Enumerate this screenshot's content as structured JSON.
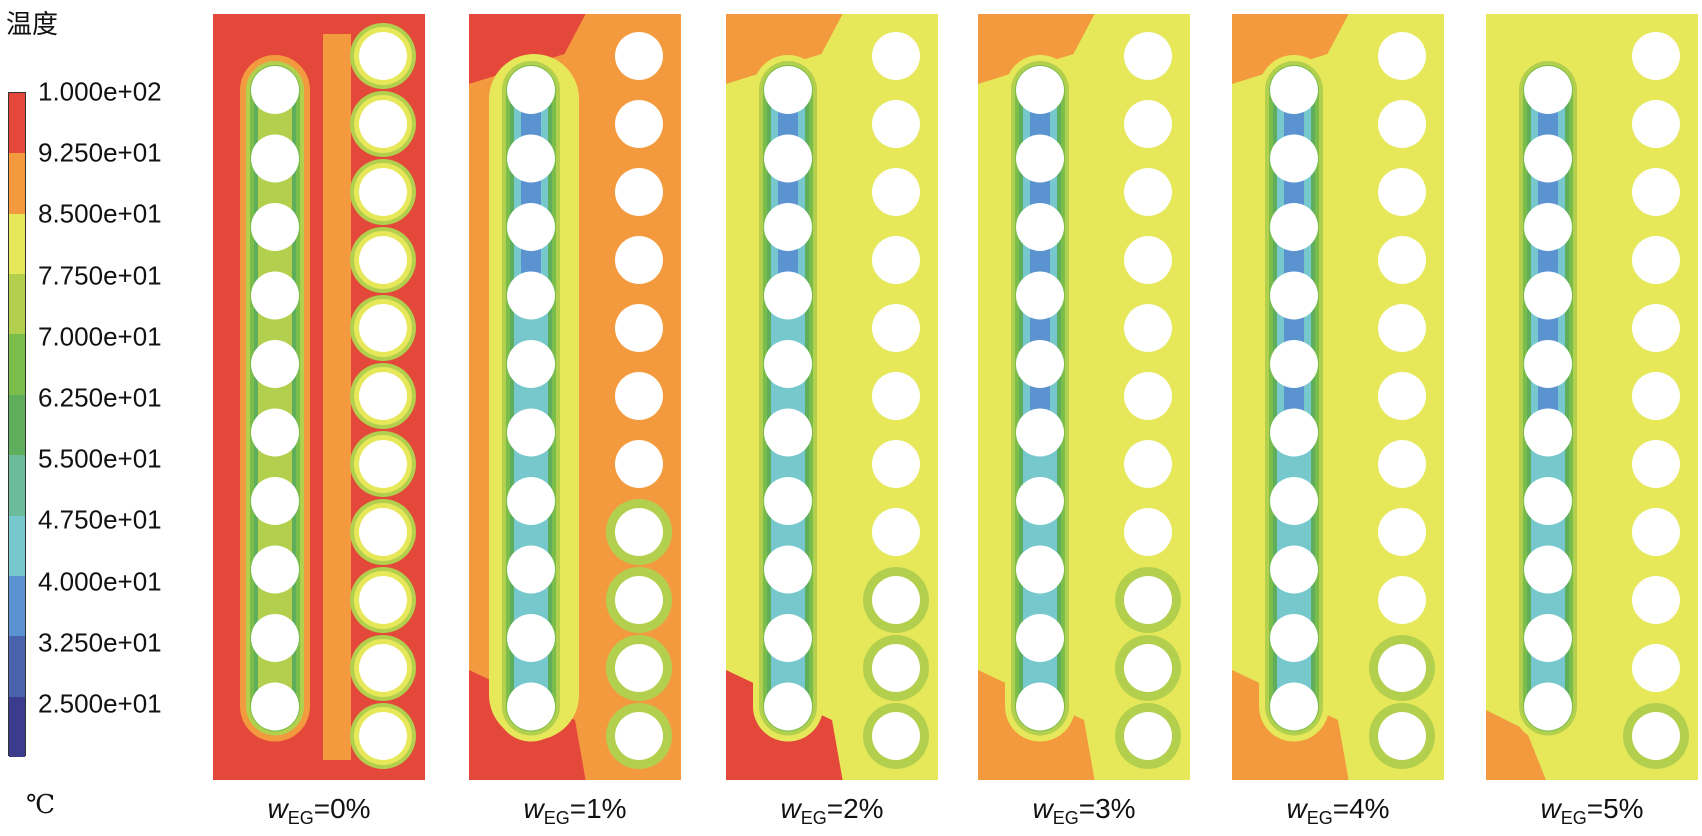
{
  "legend": {
    "title": "温度",
    "unit": "℃",
    "ticks": [
      "1.000e+02",
      "9.250e+01",
      "8.500e+01",
      "7.750e+01",
      "7.000e+01",
      "6.250e+01",
      "5.500e+01",
      "4.750e+01",
      "4.000e+01",
      "3.250e+01",
      "2.500e+01"
    ],
    "colors": [
      "#e4483a",
      "#f29a3d",
      "#e6e85a",
      "#b2d04e",
      "#7bbd4a",
      "#5fae5b",
      "#6bbc9a",
      "#77c8cc",
      "#5a93d0",
      "#4a62ac",
      "#3c3c8c"
    ]
  },
  "panels": [
    {
      "var": "w",
      "sub": "EG",
      "value": "=0%"
    },
    {
      "var": "w",
      "sub": "EG",
      "value": "=1%"
    },
    {
      "var": "w",
      "sub": "EG",
      "value": "=2%"
    },
    {
      "var": "w",
      "sub": "EG",
      "value": "=3%"
    },
    {
      "var": "w",
      "sub": "EG",
      "value": "=4%"
    },
    {
      "var": "w",
      "sub": "EG",
      "value": "=5%"
    }
  ]
}
